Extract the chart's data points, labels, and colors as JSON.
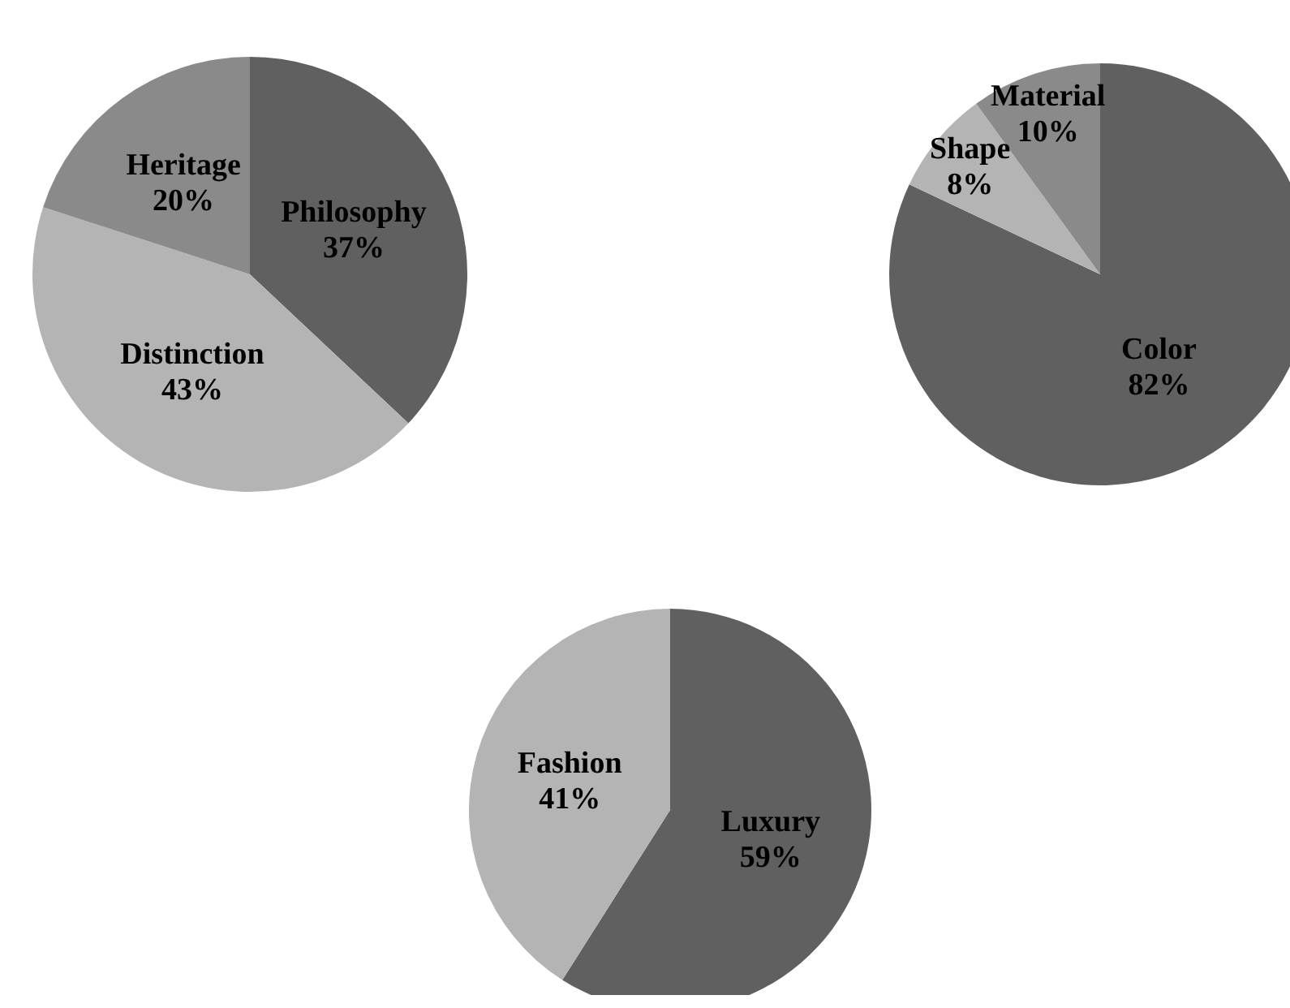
{
  "chart_data": [
    {
      "type": "pie",
      "categories": [
        "Philosophy",
        "Distinction",
        "Heritage"
      ],
      "values": [
        37,
        43,
        20
      ],
      "colors": [
        "#606060",
        "#b4b4b4",
        "#8a8a8a"
      ],
      "value_labels": [
        "37%",
        "43%",
        "20%"
      ]
    },
    {
      "type": "pie",
      "categories": [
        "Color",
        "Shape",
        "Material"
      ],
      "values": [
        82,
        8,
        10
      ],
      "colors": [
        "#606060",
        "#b4b4b4",
        "#8a8a8a"
      ],
      "value_labels": [
        "82%",
        "8%",
        "10%"
      ]
    },
    {
      "type": "pie",
      "categories": [
        "Luxury",
        "Fashion"
      ],
      "values": [
        59,
        41
      ],
      "colors": [
        "#606060",
        "#b4b4b4"
      ],
      "value_labels": [
        "59%",
        "41%"
      ]
    }
  ]
}
